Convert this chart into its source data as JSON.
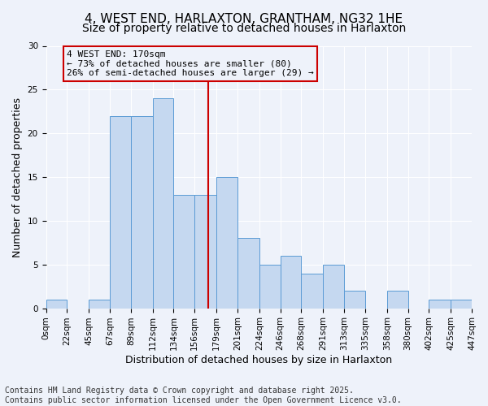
{
  "title_line1": "4, WEST END, HARLAXTON, GRANTHAM, NG32 1HE",
  "title_line2": "Size of property relative to detached houses in Harlaxton",
  "xlabel": "Distribution of detached houses by size in Harlaxton",
  "ylabel": "Number of detached properties",
  "footer_line1": "Contains HM Land Registry data © Crown copyright and database right 2025.",
  "footer_line2": "Contains public sector information licensed under the Open Government Licence v3.0.",
  "annotation_line1": "4 WEST END: 170sqm",
  "annotation_line2": "← 73% of detached houses are smaller (80)",
  "annotation_line3": "26% of semi-detached houses are larger (29) →",
  "bar_edges": [
    0,
    22,
    45,
    67,
    89,
    112,
    134,
    156,
    179,
    201,
    224,
    246,
    268,
    291,
    313,
    335,
    358,
    380,
    402,
    425,
    447
  ],
  "bar_values": [
    1,
    0,
    1,
    22,
    22,
    24,
    13,
    13,
    15,
    8,
    5,
    6,
    4,
    5,
    2,
    0,
    2,
    0,
    1,
    1
  ],
  "bar_color": "#c5d8f0",
  "bar_edgecolor": "#5b9bd5",
  "vline_x": 170,
  "vline_color": "#cc0000",
  "annotation_box_edgecolor": "#cc0000",
  "ylim": [
    0,
    30
  ],
  "yticks": [
    0,
    5,
    10,
    15,
    20,
    25,
    30
  ],
  "background_color": "#eef2fa",
  "grid_color": "#ffffff",
  "title_fontsize": 11,
  "subtitle_fontsize": 10,
  "axis_label_fontsize": 9,
  "tick_fontsize": 7.5,
  "annotation_fontsize": 8,
  "footer_fontsize": 7
}
